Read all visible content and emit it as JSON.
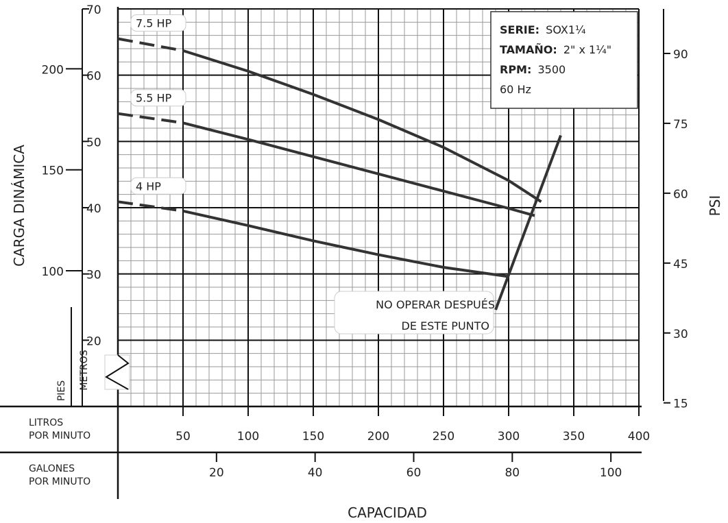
{
  "chart_data": {
    "type": "line",
    "title": "",
    "info_box": {
      "serie_label": "SERIE:",
      "serie_value": "SOX1¼",
      "tamano_label": "TAMAÑO:",
      "tamano_value": "2\" x 1¼\"",
      "rpm_label": "RPM:",
      "rpm_value": "3500",
      "freq": "60 Hz"
    },
    "xlabel": "CAPACIDAD",
    "ylabel": "CARGA DINÁMICA",
    "y2label": "PSI",
    "x_axis_lpm": {
      "label_lines": [
        "LITROS",
        "POR MINUTO"
      ],
      "ticks": [
        50,
        100,
        150,
        200,
        250,
        300,
        350,
        400
      ],
      "range": [
        0,
        400
      ]
    },
    "x_axis_gpm": {
      "label_lines": [
        "GALONES",
        "POR MINUTO"
      ],
      "ticks": [
        20,
        40,
        60,
        80,
        100
      ]
    },
    "y_axis_metros": {
      "label": "METROS",
      "ticks": [
        20,
        30,
        40,
        50,
        60,
        70
      ],
      "range": [
        10,
        70
      ]
    },
    "y_axis_pies": {
      "label": "PIES",
      "ticks": [
        100,
        150,
        200
      ]
    },
    "y_axis_psi": {
      "ticks": [
        15,
        30,
        45,
        60,
        75,
        90
      ]
    },
    "series": [
      {
        "name": "7.5 HP",
        "dashed": {
          "x": [
            0,
            50
          ],
          "y": [
            65.5,
            63.7
          ]
        },
        "solid": {
          "x": [
            50,
            100,
            150,
            200,
            250,
            300,
            325
          ],
          "y": [
            63.7,
            60.6,
            57.1,
            53.3,
            49.1,
            44.1,
            40.9
          ]
        }
      },
      {
        "name": "5.5 HP",
        "dashed": {
          "x": [
            0,
            50
          ],
          "y": [
            54.2,
            52.8
          ]
        },
        "solid": {
          "x": [
            50,
            100,
            150,
            200,
            250,
            300,
            320
          ],
          "y": [
            52.8,
            50.3,
            47.7,
            45.1,
            42.5,
            39.9,
            38.8
          ]
        }
      },
      {
        "name": "4 HP",
        "dashed": {
          "x": [
            0,
            50
          ],
          "y": [
            40.9,
            39.5
          ]
        },
        "solid": {
          "x": [
            50,
            100,
            150,
            200,
            250,
            300
          ],
          "y": [
            39.5,
            37.3,
            35.0,
            32.9,
            31.0,
            29.6
          ]
        }
      }
    ],
    "limit_line": {
      "label_lines": [
        "NO OPERAR DESPUÉS",
        "DE ESTE PUNTO"
      ],
      "x": [
        290,
        340
      ],
      "y": [
        24.6,
        50.9
      ]
    },
    "grid": true
  }
}
